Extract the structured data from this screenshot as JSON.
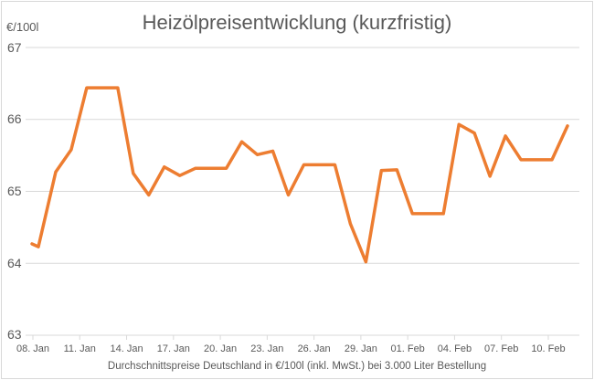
{
  "chart_data": {
    "type": "line",
    "title": "Heizölpreisentwicklung (kurzfristig)",
    "ylabel": "€/100l",
    "xlabel": "Durchschnittspreise Deutschland in €/100l (inkl. MwSt.) bei 3.000 Liter Bestellung",
    "ylim": [
      63,
      67
    ],
    "yticks": [
      "67",
      "66",
      "65",
      "64",
      "63"
    ],
    "xticks": [
      "08. Jan",
      "11. Jan",
      "14. Jan",
      "17. Jan",
      "20. Jan",
      "23. Jan",
      "26. Jan",
      "29. Jan",
      "01. Feb",
      "04. Feb",
      "07. Feb",
      "10. Feb"
    ],
    "grid": true,
    "legend": "none",
    "series": [
      {
        "name": "Heizölpreis",
        "color": "#ed7d31",
        "x": [
          "07. Jan",
          "08. Jan",
          "09. Jan",
          "10. Jan",
          "11. Jan",
          "12. Jan",
          "13. Jan",
          "14. Jan",
          "15. Jan",
          "16. Jan",
          "17. Jan",
          "18. Jan",
          "19. Jan",
          "20. Jan",
          "21. Jan",
          "22. Jan",
          "23. Jan",
          "24. Jan",
          "25. Jan",
          "26. Jan",
          "27. Jan",
          "28. Jan",
          "29. Jan",
          "30. Jan",
          "31. Jan",
          "01. Feb",
          "02. Feb",
          "03. Feb",
          "04. Feb",
          "05. Feb",
          "06. Feb",
          "07. Feb",
          "08. Feb",
          "09. Feb",
          "10. Feb",
          "11. Feb"
        ],
        "values": [
          64.27,
          64.23,
          65.27,
          65.58,
          66.44,
          66.44,
          66.44,
          65.25,
          64.95,
          65.34,
          65.22,
          65.32,
          65.32,
          65.32,
          65.69,
          65.51,
          65.56,
          64.95,
          65.37,
          65.37,
          65.37,
          64.55,
          64.02,
          65.29,
          65.3,
          64.69,
          64.69,
          64.69,
          65.93,
          65.81,
          65.21,
          65.77,
          65.44,
          65.44,
          65.44,
          65.91
        ]
      }
    ]
  }
}
